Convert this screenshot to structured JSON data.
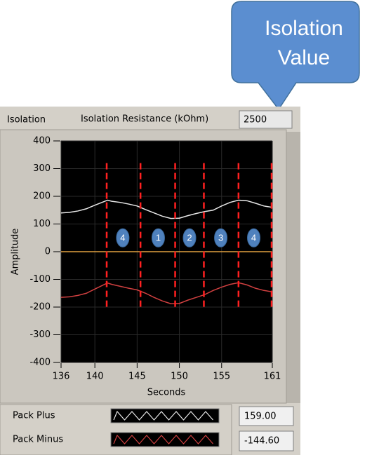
{
  "callout": {
    "lines": [
      "Isolation",
      "Value"
    ]
  },
  "panel": {
    "label": "Isolation",
    "field_label": "Isolation Resistance (kOhm)",
    "field_value": "2500",
    "legend_values": [
      "159.00",
      "-144.60"
    ]
  },
  "chart_data": {
    "type": "line",
    "xlabel": "Seconds",
    "ylabel": "Amplitude",
    "xlim": [
      136,
      161
    ],
    "ylim": [
      -400,
      400
    ],
    "xticks": [
      136,
      140,
      145,
      150,
      155,
      161
    ],
    "yticks": [
      400,
      300,
      200,
      100,
      0,
      -100,
      -200,
      -300,
      -400
    ],
    "x": [
      136,
      137,
      138,
      139,
      140,
      141,
      141.5,
      142,
      143,
      144,
      145,
      146,
      147,
      148,
      149,
      150,
      151,
      152,
      153,
      154,
      155,
      156,
      157,
      158,
      159,
      160,
      161
    ],
    "series": [
      {
        "name": "Pack Plus",
        "color": "#e8e8e8",
        "values": [
          140,
          142,
          147,
          155,
          168,
          180,
          186,
          182,
          178,
          172,
          165,
          152,
          140,
          128,
          120,
          121,
          130,
          138,
          145,
          150,
          165,
          178,
          186,
          184,
          175,
          165,
          160
        ]
      },
      {
        "name": "Pack Minus",
        "color": "#d04040",
        "values": [
          -165,
          -163,
          -158,
          -150,
          -135,
          -120,
          -113,
          -118,
          -125,
          -132,
          -138,
          -150,
          -165,
          -178,
          -188,
          -187,
          -175,
          -165,
          -155,
          -140,
          -128,
          -118,
          -112,
          -120,
          -132,
          -140,
          -145
        ]
      }
    ],
    "hline": {
      "y": 0,
      "color": "#e0a040"
    },
    "markers": {
      "color": "#ff2020",
      "x": [
        141.4,
        145.4,
        149.5,
        152.9,
        157,
        161
      ],
      "range": [
        -200,
        320
      ]
    },
    "annotations": [
      {
        "text": "4",
        "x": 143.3,
        "y": 50
      },
      {
        "text": "1",
        "x": 147.5,
        "y": 50
      },
      {
        "text": "2",
        "x": 151.2,
        "y": 50
      },
      {
        "text": "3",
        "x": 154.9,
        "y": 50
      },
      {
        "text": "4",
        "x": 158.8,
        "y": 50
      }
    ]
  }
}
